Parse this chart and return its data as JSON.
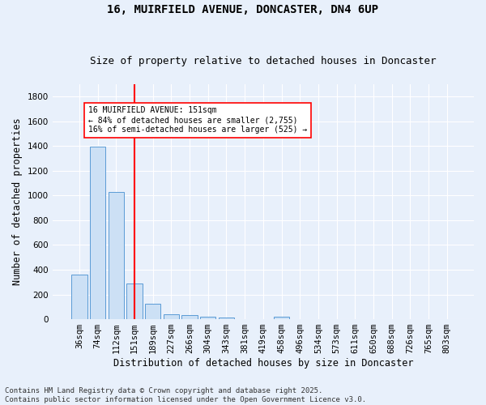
{
  "title_line1": "16, MUIRFIELD AVENUE, DONCASTER, DN4 6UP",
  "title_line2": "Size of property relative to detached houses in Doncaster",
  "xlabel": "Distribution of detached houses by size in Doncaster",
  "ylabel": "Number of detached properties",
  "categories": [
    "36sqm",
    "74sqm",
    "112sqm",
    "151sqm",
    "189sqm",
    "227sqm",
    "266sqm",
    "304sqm",
    "343sqm",
    "381sqm",
    "419sqm",
    "458sqm",
    "496sqm",
    "534sqm",
    "573sqm",
    "611sqm",
    "650sqm",
    "688sqm",
    "726sqm",
    "765sqm",
    "803sqm"
  ],
  "values": [
    360,
    1395,
    1030,
    290,
    125,
    42,
    35,
    22,
    15,
    0,
    0,
    18,
    0,
    0,
    0,
    0,
    0,
    0,
    0,
    0,
    0
  ],
  "bar_color": "#cce0f5",
  "bar_edge_color": "#5b9bd5",
  "vline_index": 3,
  "vline_color": "red",
  "annotation_text": "16 MUIRFIELD AVENUE: 151sqm\n← 84% of detached houses are smaller (2,755)\n16% of semi-detached houses are larger (525) →",
  "annotation_box_color": "white",
  "annotation_box_edge_color": "red",
  "ylim": [
    0,
    1900
  ],
  "yticks": [
    0,
    200,
    400,
    600,
    800,
    1000,
    1200,
    1400,
    1600,
    1800
  ],
  "background_color": "#e8f0fb",
  "grid_color": "#ffffff",
  "footnote": "Contains HM Land Registry data © Crown copyright and database right 2025.\nContains public sector information licensed under the Open Government Licence v3.0.",
  "title_fontsize": 10,
  "subtitle_fontsize": 9,
  "label_fontsize": 8.5,
  "tick_fontsize": 7.5,
  "footnote_fontsize": 6.5
}
